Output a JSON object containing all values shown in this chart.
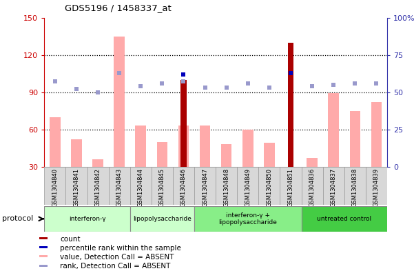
{
  "title": "GDS5196 / 1458337_at",
  "samples": [
    "GSM1304840",
    "GSM1304841",
    "GSM1304842",
    "GSM1304843",
    "GSM1304844",
    "GSM1304845",
    "GSM1304846",
    "GSM1304847",
    "GSM1304848",
    "GSM1304849",
    "GSM1304850",
    "GSM1304851",
    "GSM1304836",
    "GSM1304837",
    "GSM1304838",
    "GSM1304839"
  ],
  "groups": [
    {
      "label": "interferon-γ",
      "start": 0,
      "end": 4,
      "color": "#ccffcc"
    },
    {
      "label": "lipopolysaccharide",
      "start": 4,
      "end": 7,
      "color": "#ccffcc"
    },
    {
      "label": "interferon-γ +\nlipopolysaccharide",
      "start": 7,
      "end": 12,
      "color": "#88ee88"
    },
    {
      "label": "untreated control",
      "start": 12,
      "end": 16,
      "color": "#44cc44"
    }
  ],
  "pink_bars": [
    70,
    52,
    36,
    135,
    63,
    50,
    63,
    63,
    48,
    60,
    49,
    30,
    37,
    89,
    75,
    82
  ],
  "red_bars": [
    0,
    0,
    0,
    0,
    0,
    0,
    100,
    0,
    0,
    0,
    0,
    130,
    0,
    0,
    0,
    0
  ],
  "blue_squares_pct": [
    0,
    0,
    0,
    0,
    0,
    0,
    62,
    0,
    0,
    0,
    0,
    63,
    0,
    0,
    0,
    0
  ],
  "lightblue_squares_pct": [
    57,
    52,
    50,
    63,
    54,
    56,
    57,
    53,
    53,
    56,
    53,
    0,
    54,
    55,
    56,
    56
  ],
  "ylim_left": [
    30,
    150
  ],
  "ylim_right": [
    0,
    100
  ],
  "yticks_left": [
    30,
    60,
    90,
    120,
    150
  ],
  "yticks_right": [
    0,
    25,
    50,
    75,
    100
  ],
  "ytick_labels_right": [
    "0",
    "25",
    "50",
    "75",
    "100%"
  ],
  "left_axis_color": "#cc0000",
  "right_axis_color": "#3333aa",
  "pink_color": "#ffaaaa",
  "red_color": "#aa0000",
  "blue_color": "#0000bb",
  "lightblue_color": "#9999cc",
  "protocol_label": "protocol",
  "legend_items": [
    {
      "label": "count",
      "color": "#aa0000"
    },
    {
      "label": "percentile rank within the sample",
      "color": "#0000bb"
    },
    {
      "label": "value, Detection Call = ABSENT",
      "color": "#ffaaaa"
    },
    {
      "label": "rank, Detection Call = ABSENT",
      "color": "#9999cc"
    }
  ]
}
